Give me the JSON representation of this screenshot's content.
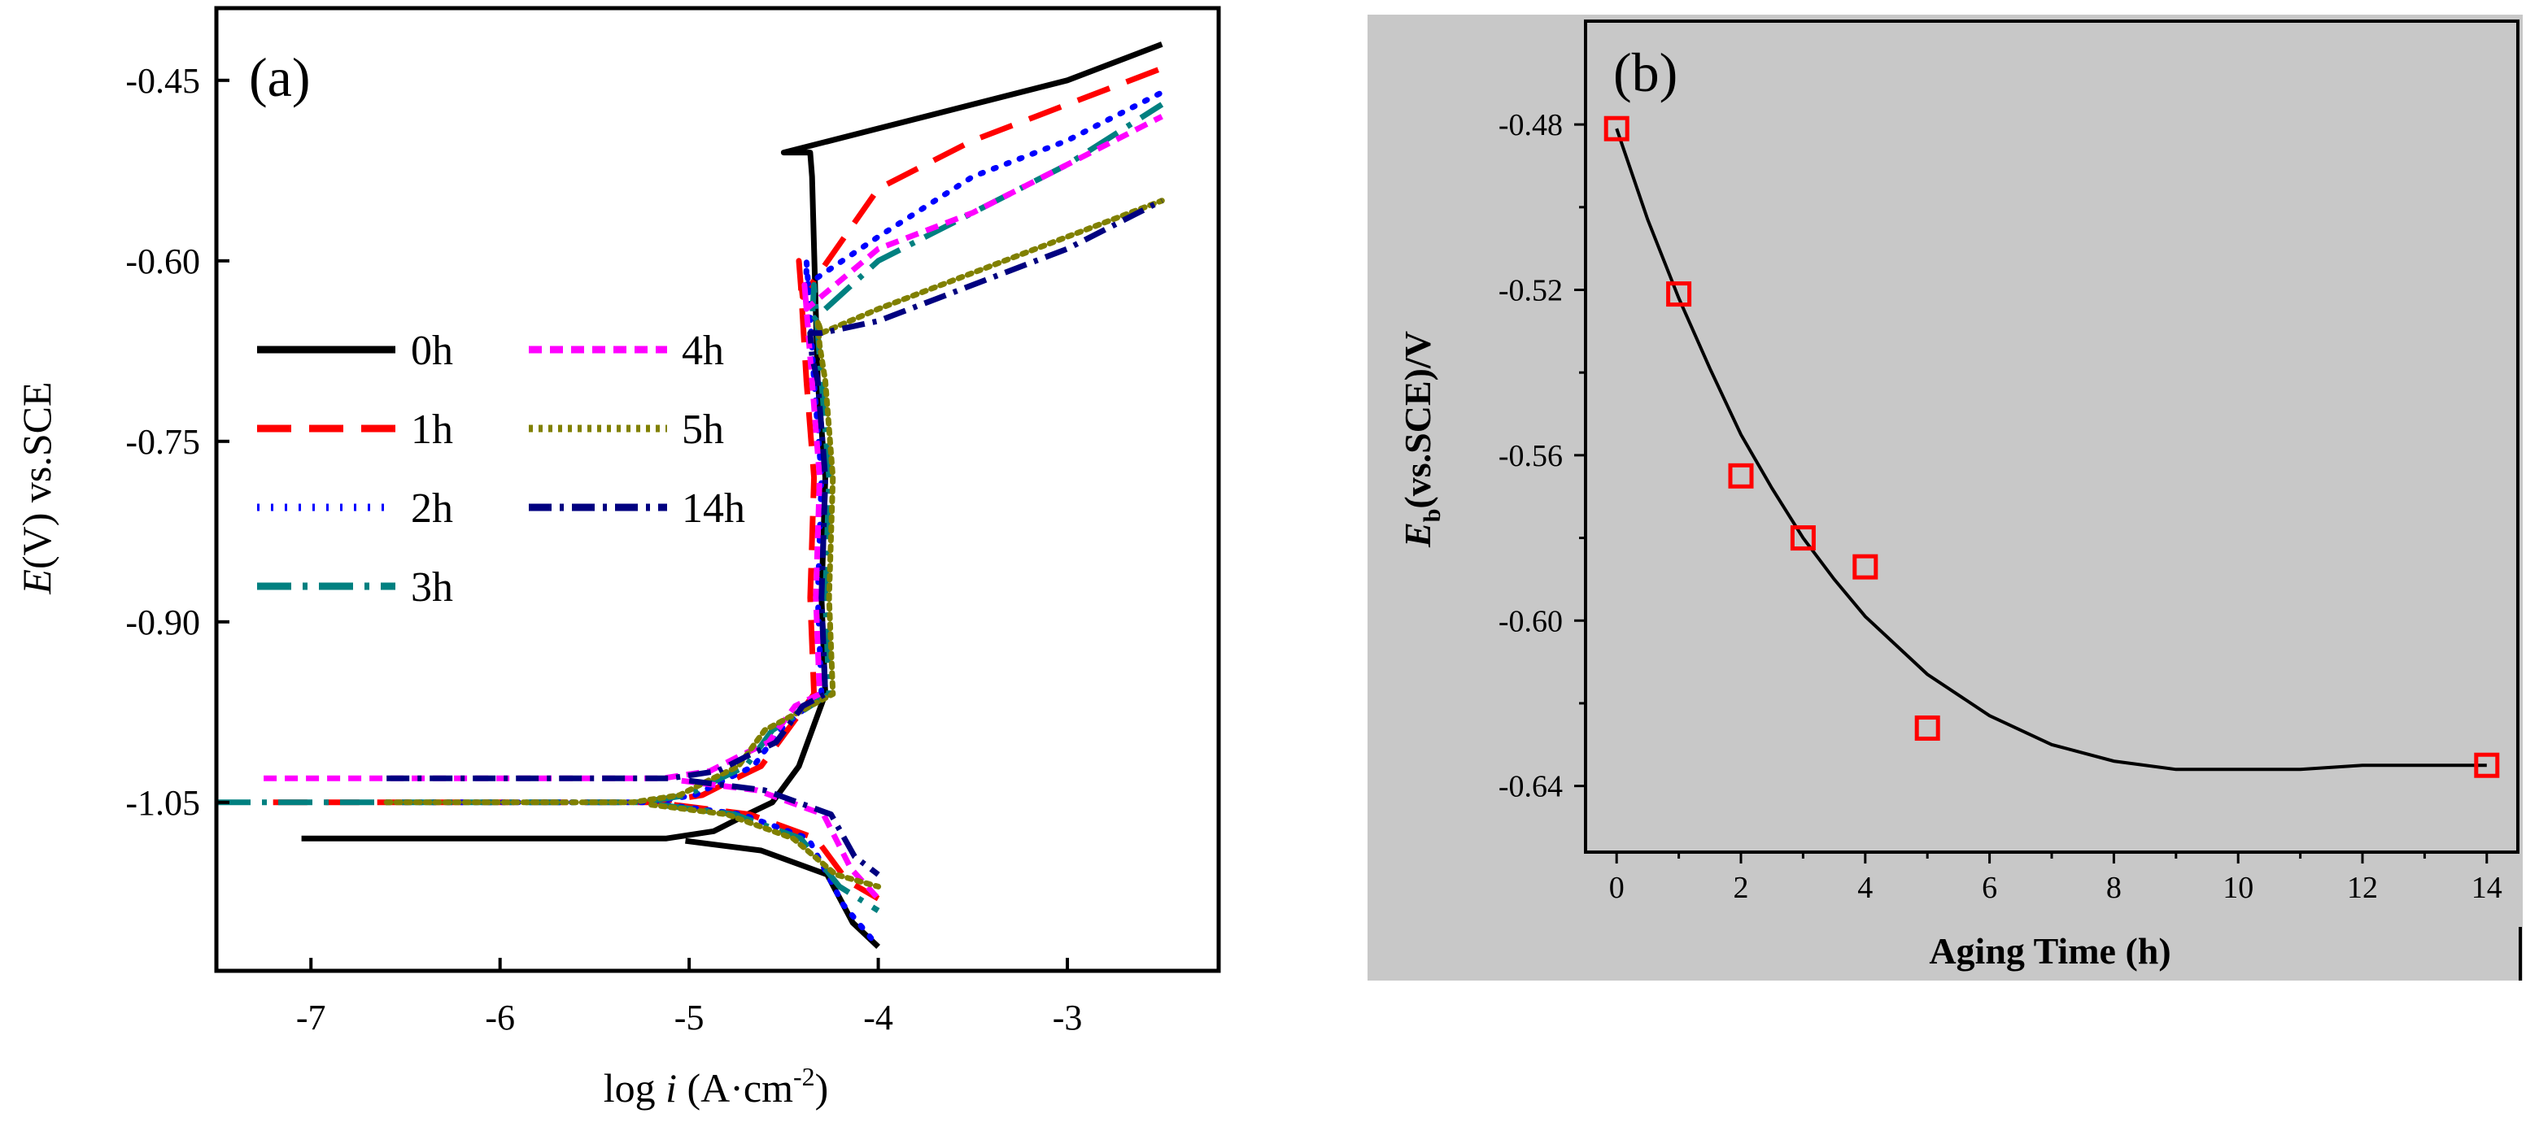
{
  "chart_data": [
    {
      "panel": "(a)",
      "type": "line",
      "xlabel_prefix": "log ",
      "xlabel_var": "i",
      "xlabel_unit": " (A·cm",
      "xlabel_exp": "-2",
      "xlabel_close": ")",
      "ylabel_var": "E",
      "ylabel_rest": "(V) vs.SCE",
      "xlim": [
        -7.5,
        -2.2
      ],
      "ylim": [
        -1.19,
        -0.39
      ],
      "xticks": [
        -7,
        -6,
        -5,
        -4,
        -3
      ],
      "xtick_labels": [
        "-7",
        "-6",
        "-5",
        "-4",
        "-3"
      ],
      "yticks": [
        -0.45,
        -0.6,
        -0.75,
        -0.9,
        -1.05
      ],
      "ytick_labels": [
        "-0.45",
        "-0.60",
        "-0.75",
        "-0.90",
        "-1.05"
      ],
      "legend_position": "middle-left, two columns",
      "series": [
        {
          "name": "0h",
          "color": "#000000",
          "dash": "",
          "Ecorr": -1.08,
          "i_corr_log": -4.72,
          "cathodic_start_x": -7.05,
          "cathodic_end": [
            -4.0,
            -1.17
          ],
          "passive_log_i": -4.3,
          "breakdown_E": -0.51,
          "anodic_points": [
            [
              -4.5,
              -0.51
            ],
            [
              -4.0,
              -0.49
            ],
            [
              -3.5,
              -0.47
            ],
            [
              -3.0,
              -0.45
            ],
            [
              -2.5,
              -0.42
            ]
          ]
        },
        {
          "name": "1h",
          "color": "#ff0000",
          "dash": "42 22",
          "Ecorr": -1.05,
          "i_corr_log": -4.78,
          "cathodic_start_x": -7.2,
          "cathodic_end": [
            -4.0,
            -1.13
          ],
          "passive_log_i": -4.36,
          "breakdown_E": -0.6,
          "anodic_points": [
            [
              -4.4,
              -0.63
            ],
            [
              -4.0,
              -0.54
            ],
            [
              -3.5,
              -0.5
            ],
            [
              -3.0,
              -0.47
            ],
            [
              -2.5,
              -0.44
            ]
          ]
        },
        {
          "name": "2h",
          "color": "#0000ff",
          "dash": "3 14",
          "Ecorr": -1.05,
          "i_corr_log": -4.82,
          "cathodic_start_x": -6.5,
          "cathodic_end": [
            -4.0,
            -1.17
          ],
          "passive_log_i": -4.32,
          "breakdown_E": -0.6,
          "anodic_points": [
            [
              -4.38,
              -0.62
            ],
            [
              -4.0,
              -0.58
            ],
            [
              -3.5,
              -0.53
            ],
            [
              -3.0,
              -0.5
            ],
            [
              -2.5,
              -0.46
            ]
          ]
        },
        {
          "name": "3h",
          "color": "#008080",
          "dash": "42 14 6 14",
          "Ecorr": -1.05,
          "i_corr_log": -4.86,
          "cathodic_start_x": -7.5,
          "cathodic_end": [
            -4.0,
            -1.14
          ],
          "passive_log_i": -4.28,
          "breakdown_E": -0.62,
          "anodic_points": [
            [
              -4.35,
              -0.65
            ],
            [
              -4.0,
              -0.6
            ],
            [
              -3.5,
              -0.56
            ],
            [
              -3.0,
              -0.52
            ],
            [
              -2.5,
              -0.47
            ]
          ]
        },
        {
          "name": "4h",
          "color": "#ff00ff",
          "dash": "16 10",
          "Ecorr": -1.03,
          "i_corr_log": -4.74,
          "cathodic_start_x": -7.25,
          "cathodic_end": [
            -4.0,
            -1.13
          ],
          "passive_log_i": -4.33,
          "breakdown_E": -0.62,
          "anodic_points": [
            [
              -4.38,
              -0.64
            ],
            [
              -4.0,
              -0.59
            ],
            [
              -3.5,
              -0.56
            ],
            [
              -3.0,
              -0.52
            ],
            [
              -2.5,
              -0.48
            ]
          ]
        },
        {
          "name": "5h",
          "color": "#808000",
          "dash": "5 7",
          "Ecorr": -1.05,
          "i_corr_log": -4.9,
          "cathodic_start_x": -6.6,
          "cathodic_end": [
            -4.0,
            -1.12
          ],
          "passive_log_i": -4.26,
          "breakdown_E": -0.65,
          "anodic_points": [
            [
              -4.3,
              -0.66
            ],
            [
              -4.0,
              -0.64
            ],
            [
              -3.5,
              -0.61
            ],
            [
              -3.0,
              -0.58
            ],
            [
              -2.5,
              -0.55
            ]
          ]
        },
        {
          "name": "14h",
          "color": "#000080",
          "dash": "28 10 5 10",
          "Ecorr": -1.03,
          "i_corr_log": -4.7,
          "cathodic_start_x": -6.6,
          "cathodic_end": [
            -4.0,
            -1.11
          ],
          "passive_log_i": -4.3,
          "breakdown_E": -0.66,
          "anodic_points": [
            [
              -4.3,
              -0.66
            ],
            [
              -4.0,
              -0.65
            ],
            [
              -3.5,
              -0.62
            ],
            [
              -3.0,
              -0.59
            ],
            [
              -2.5,
              -0.55
            ]
          ]
        }
      ]
    },
    {
      "panel": "(b)",
      "type": "scatter",
      "xlabel": "Aging Time (h)",
      "ylabel_var": "E",
      "ylabel_sub": "b",
      "ylabel_rest": "(vs.SCE)/V",
      "xlim": [
        -0.5,
        14.5
      ],
      "ylim": [
        -0.656,
        -0.455
      ],
      "xticks": [
        0,
        2,
        4,
        6,
        8,
        10,
        12,
        14
      ],
      "xtick_labels": [
        "0",
        "2",
        "4",
        "6",
        "8",
        "10",
        "12",
        "14"
      ],
      "yticks": [
        -0.48,
        -0.52,
        -0.56,
        -0.6,
        -0.64
      ],
      "ytick_labels": [
        "-0.48",
        "-0.52",
        "-0.56",
        "-0.60",
        "-0.64"
      ],
      "marker_color": "#ff0000",
      "background_color": "#c8c8c8",
      "points": {
        "x": [
          0,
          1,
          2,
          3,
          4,
          5,
          14
        ],
        "y": [
          -0.481,
          -0.521,
          -0.565,
          -0.58,
          -0.587,
          -0.626,
          -0.635
        ]
      },
      "fit": {
        "x": [
          0,
          0.5,
          1,
          1.5,
          2,
          2.5,
          3,
          3.5,
          4,
          5,
          6,
          7,
          8,
          9,
          10,
          11,
          12,
          13,
          14
        ],
        "y": [
          -0.481,
          -0.503,
          -0.522,
          -0.539,
          -0.555,
          -0.568,
          -0.58,
          -0.59,
          -0.599,
          -0.613,
          -0.623,
          -0.63,
          -0.634,
          -0.636,
          -0.636,
          -0.636,
          -0.635,
          -0.635,
          -0.635
        ]
      }
    }
  ]
}
